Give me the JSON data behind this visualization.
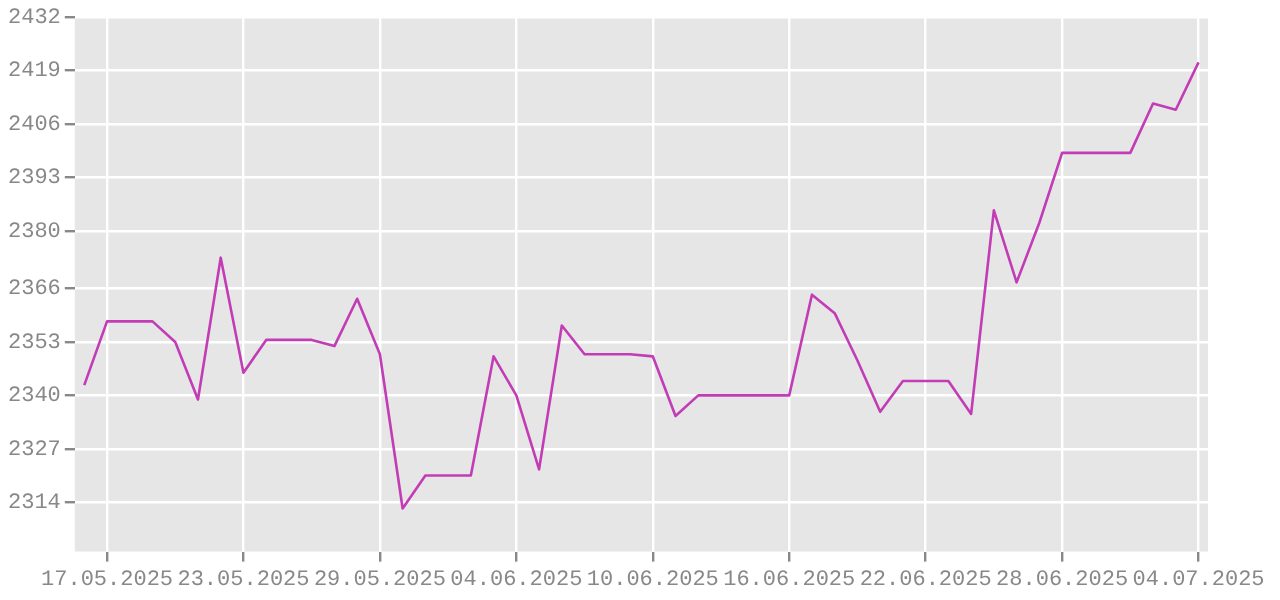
{
  "chart_data": {
    "type": "line",
    "x": [
      "2025-05-16",
      "2025-05-17",
      "2025-05-18",
      "2025-05-19",
      "2025-05-20",
      "2025-05-21",
      "2025-05-22",
      "2025-05-23",
      "2025-05-24",
      "2025-05-25",
      "2025-05-26",
      "2025-05-27",
      "2025-05-28",
      "2025-05-29",
      "2025-05-30",
      "2025-05-31",
      "2025-06-01",
      "2025-06-02",
      "2025-06-03",
      "2025-06-04",
      "2025-06-05",
      "2025-06-06",
      "2025-06-07",
      "2025-06-08",
      "2025-06-09",
      "2025-06-10",
      "2025-06-11",
      "2025-06-12",
      "2025-06-13",
      "2025-06-14",
      "2025-06-15",
      "2025-06-16",
      "2025-06-17",
      "2025-06-18",
      "2025-06-19",
      "2025-06-20",
      "2025-06-21",
      "2025-06-22",
      "2025-06-23",
      "2025-06-24",
      "2025-06-25",
      "2025-06-26",
      "2025-06-27",
      "2025-06-28",
      "2025-06-29",
      "2025-06-30",
      "2025-07-01",
      "2025-07-02",
      "2025-07-03",
      "2025-07-04"
    ],
    "series": [
      {
        "color": "#c23cb6",
        "values": [
          2342.5,
          2358,
          2358,
          2358,
          2353,
          2339,
          2373.5,
          2345.5,
          2353.5,
          2353.5,
          2353.5,
          2352,
          2363.5,
          2350,
          2312.5,
          2320.5,
          2320.5,
          2320.5,
          2349.5,
          2340,
          2322,
          2357,
          2350,
          2350,
          2350,
          2349.5,
          2335,
          2340,
          2340,
          2340,
          2340,
          2340,
          2364.5,
          2360,
          2348.5,
          2336,
          2343.5,
          2343.5,
          2343.5,
          2335.5,
          2385,
          2367.5,
          2382,
          2399,
          2399,
          2399,
          2399,
          2411,
          2409.5,
          2421
        ]
      }
    ],
    "xlim": [
      "2025-05-15T14:00",
      "2025-07-04T10:00"
    ],
    "xticks": [
      {
        "value": "2025-05-17",
        "label": "17.05.2025"
      },
      {
        "value": "2025-05-23",
        "label": "23.05.2025"
      },
      {
        "value": "2025-05-29",
        "label": "29.05.2025"
      },
      {
        "value": "2025-06-04",
        "label": "04.06.2025"
      },
      {
        "value": "2025-06-10",
        "label": "10.06.2025"
      },
      {
        "value": "2025-06-16",
        "label": "16.06.2025"
      },
      {
        "value": "2025-06-22",
        "label": "22.06.2025"
      },
      {
        "value": "2025-06-28",
        "label": "28.06.2025"
      },
      {
        "value": "2025-07-04",
        "label": "04.07.2025"
      }
    ],
    "ylim": [
      2302,
      2432
    ],
    "yticks": [
      2314,
      2327,
      2340,
      2353,
      2366,
      2380,
      2393,
      2406,
      2419,
      2432
    ],
    "grid": true,
    "marker": "none",
    "line_style": "solid"
  }
}
